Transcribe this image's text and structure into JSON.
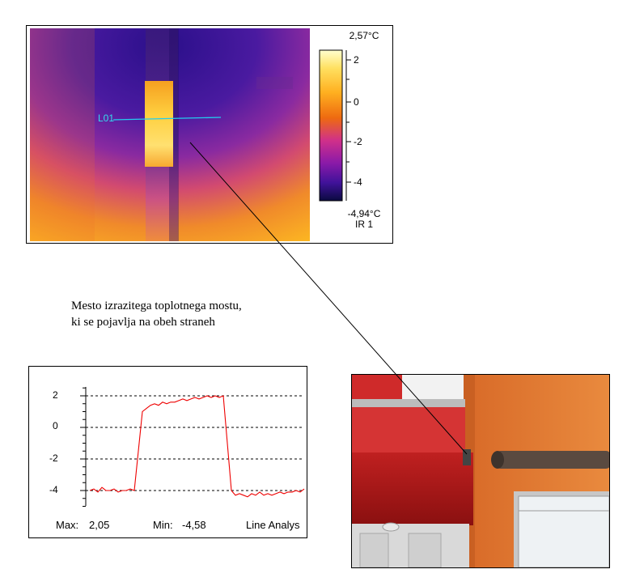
{
  "thermogram": {
    "line_label": "L01",
    "scale_max": "2,57°C",
    "scale_min": "-4,94°C",
    "scale_id": "IR 1",
    "scale_ticks": [
      "2",
      "0",
      "-2",
      "-4"
    ]
  },
  "caption": {
    "line1": "Mesto izrazitega toplotnega mostu,",
    "line2": "ki se pojavlja na obeh straneh"
  },
  "line_profile": {
    "max_label": "Max:",
    "max_value": "2,05",
    "min_label": "Min:",
    "min_value": "-4,58",
    "analysis_label": "Line Analys"
  },
  "chart_data": {
    "type": "line",
    "title": "",
    "xlabel": "",
    "ylabel": "",
    "ylim": [
      -5,
      2.6
    ],
    "yticks": [
      "2",
      "0",
      "-2",
      "-4"
    ],
    "grid": "dashed horizontal at 2, 0, -2, -4",
    "series": [
      {
        "color": "#ee0000",
        "values": [
          -4.0,
          -3.9,
          -4.1,
          -3.8,
          -4.0,
          -4.0,
          -3.9,
          -4.1,
          -4.0,
          -4.0,
          -3.9,
          -4.0,
          -1.5,
          1.0,
          1.2,
          1.4,
          1.5,
          1.4,
          1.6,
          1.5,
          1.6,
          1.6,
          1.7,
          1.8,
          1.7,
          1.8,
          1.9,
          1.8,
          1.9,
          2.0,
          1.9,
          2.0,
          1.9,
          2.0,
          -1.0,
          -4.0,
          -4.3,
          -4.2,
          -4.3,
          -4.4,
          -4.2,
          -4.3,
          -4.1,
          -4.3,
          -4.2,
          -4.3,
          -4.2,
          -4.1,
          -4.2,
          -4.1,
          -4.1,
          -4.0,
          -4.1,
          -3.9
        ]
      }
    ]
  },
  "colors": {
    "profile_line": "#ee0000",
    "measure_line": "#22ccee",
    "frame": "#000000"
  }
}
